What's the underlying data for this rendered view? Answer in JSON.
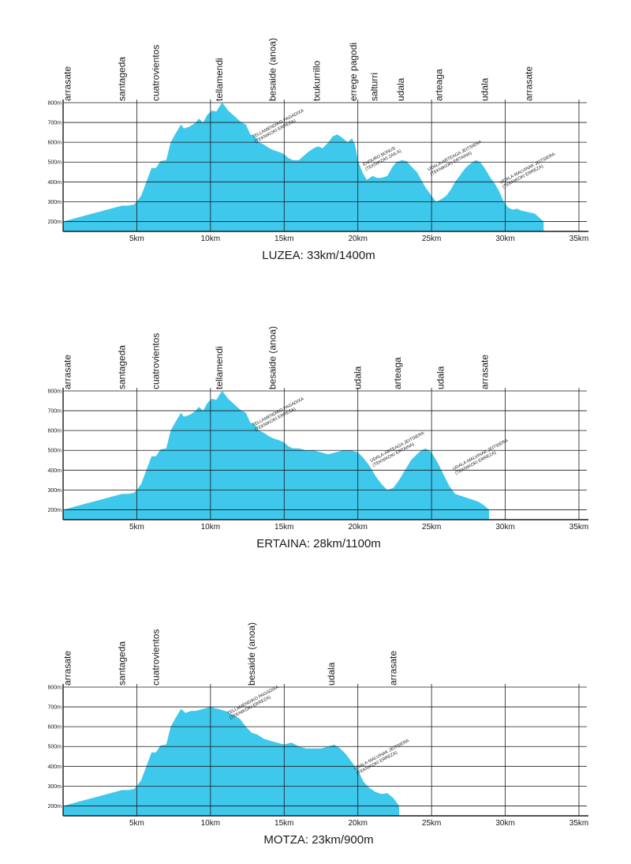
{
  "chart_data": [
    {
      "type": "area",
      "title": "LUZEA: 33km/1400m",
      "xlim": [
        0,
        35
      ],
      "ylim": [
        150,
        800
      ],
      "x_ticks": [
        "5km",
        "10km",
        "15km",
        "20km",
        "25km",
        "30km",
        "35km"
      ],
      "y_ticks": [
        "200m",
        "300m",
        "400m",
        "500m",
        "600m",
        "700m",
        "800m"
      ],
      "places": [
        {
          "name": "arrasate",
          "km": 0.3
        },
        {
          "name": "santageda",
          "km": 4.0
        },
        {
          "name": "cuatrovientos",
          "km": 6.3
        },
        {
          "name": "tellamendi",
          "km": 10.6
        },
        {
          "name": "besaide (anoa)",
          "km": 14.2
        },
        {
          "name": "txukurrillo",
          "km": 17.2
        },
        {
          "name": "errege pagodi",
          "km": 19.7
        },
        {
          "name": "salturri",
          "km": 21.1
        },
        {
          "name": "udala",
          "km": 22.9
        },
        {
          "name": "arteaga",
          "km": 25.5
        },
        {
          "name": "udala",
          "km": 28.6
        },
        {
          "name": "arrasate",
          "km": 31.6
        }
      ],
      "annotations": [
        {
          "lines": [
            "TELLAMENDIKO PAGADIXA",
            "(TEKNIKOKI ERREZA)"
          ],
          "km": 12.9,
          "elev": 620
        },
        {
          "lines": [
            "ENDURO BONUS",
            "(TEKNIKOKI ZAILA)"
          ],
          "km": 20.4,
          "elev": 480
        },
        {
          "lines": [
            "UDALA-ARTEAGA JEITSIERA",
            "(TEKNIKOKI ERTAINA)"
          ],
          "km": 24.8,
          "elev": 455
        },
        {
          "lines": [
            "UDALA-MALVINAK JEITSIERA",
            "(TEKNIKOKI ERREZA)"
          ],
          "km": 29.7,
          "elev": 390
        }
      ],
      "series": [
        {
          "x": [
            0.0,
            1.0,
            2.0,
            3.0,
            3.5,
            4.0,
            4.4,
            4.8,
            5.0,
            5.3,
            5.6,
            6.0,
            6.3,
            6.6,
            7.0,
            7.3,
            7.6,
            8.0,
            8.2,
            8.6,
            9.0,
            9.2,
            9.5,
            9.8,
            10.1,
            10.4,
            10.6,
            10.8,
            11.0,
            11.2,
            11.5,
            11.8,
            12.1,
            12.4,
            12.7,
            13.0,
            13.3,
            13.6,
            14.0,
            14.3,
            14.7,
            15.0,
            15.3,
            15.6,
            16.0,
            16.3,
            16.6,
            17.0,
            17.3,
            17.6,
            18.0,
            18.3,
            18.6,
            19.0,
            19.3,
            19.6,
            19.8,
            20.0,
            20.3,
            20.6,
            21.0,
            21.3,
            21.6,
            22.0,
            22.3,
            22.6,
            23.0,
            23.3,
            23.6,
            24.0,
            24.3,
            24.6,
            25.0,
            25.3,
            25.6,
            26.0,
            26.3,
            26.6,
            27.0,
            27.3,
            27.6,
            28.0,
            28.3,
            28.6,
            29.0,
            29.3,
            29.6,
            29.9,
            30.2,
            30.5,
            30.8,
            31.1,
            31.4,
            31.7,
            32.0,
            32.3,
            32.6
          ],
          "y": [
            200,
            220,
            240,
            260,
            270,
            280,
            280,
            285,
            300,
            330,
            390,
            470,
            470,
            505,
            510,
            600,
            640,
            690,
            670,
            680,
            700,
            720,
            700,
            740,
            760,
            755,
            780,
            800,
            780,
            760,
            740,
            720,
            700,
            690,
            640,
            630,
            600,
            590,
            570,
            560,
            550,
            540,
            520,
            510,
            510,
            530,
            550,
            570,
            580,
            570,
            600,
            630,
            640,
            620,
            600,
            620,
            590,
            510,
            450,
            410,
            430,
            420,
            420,
            430,
            470,
            500,
            510,
            505,
            480,
            450,
            410,
            370,
            330,
            300,
            310,
            330,
            360,
            400,
            440,
            470,
            490,
            510,
            500,
            470,
            420,
            390,
            350,
            300,
            270,
            260,
            265,
            255,
            250,
            245,
            240,
            220,
            200
          ]
        }
      ]
    },
    {
      "type": "area",
      "title": "ERTAINA: 28km/1100m",
      "xlim": [
        0,
        35
      ],
      "ylim": [
        150,
        800
      ],
      "x_ticks": [
        "5km",
        "10km",
        "15km",
        "20km",
        "25km",
        "30km",
        "35km"
      ],
      "y_ticks": [
        "200m",
        "300m",
        "400m",
        "500m",
        "600m",
        "700m",
        "800m"
      ],
      "places": [
        {
          "name": "arrasate",
          "km": 0.3
        },
        {
          "name": "santageda",
          "km": 4.0
        },
        {
          "name": "cuatrovientos",
          "km": 6.3
        },
        {
          "name": "tellamendi",
          "km": 10.6
        },
        {
          "name": "besaide (anoa)",
          "km": 14.2
        },
        {
          "name": "udala",
          "km": 20.0
        },
        {
          "name": "arteaga",
          "km": 22.7
        },
        {
          "name": "udala",
          "km": 25.6
        },
        {
          "name": "arrasate",
          "km": 28.6
        }
      ],
      "annotations": [
        {
          "lines": [
            "TELLAMENDIKO PAGADIXA",
            "(TEKNIKOKI ERREZA)"
          ],
          "km": 12.9,
          "elev": 620
        },
        {
          "lines": [
            "UDALA-ARTEAGA JEITSIERA",
            "(TEKNIKOKI ERTAINA)"
          ],
          "km": 20.9,
          "elev": 440
        },
        {
          "lines": [
            "UDALA-MALVINAK JEITSIERA",
            "(TEKNIKOKI ERREZA)"
          ],
          "km": 26.5,
          "elev": 400
        }
      ],
      "series": [
        {
          "x": [
            0.0,
            1.0,
            2.0,
            3.0,
            3.5,
            4.0,
            4.4,
            4.8,
            5.0,
            5.3,
            5.6,
            6.0,
            6.3,
            6.6,
            7.0,
            7.3,
            7.6,
            8.0,
            8.2,
            8.6,
            9.0,
            9.2,
            9.5,
            9.8,
            10.1,
            10.4,
            10.6,
            10.8,
            11.0,
            11.2,
            11.5,
            11.8,
            12.1,
            12.4,
            12.7,
            13.0,
            13.3,
            13.6,
            14.0,
            14.3,
            14.7,
            15.0,
            15.3,
            15.6,
            16.0,
            16.5,
            17.0,
            17.5,
            18.0,
            18.5,
            19.0,
            19.5,
            20.0,
            20.4,
            20.8,
            21.2,
            21.6,
            22.0,
            22.4,
            22.8,
            23.2,
            23.6,
            24.0,
            24.3,
            24.6,
            25.0,
            25.4,
            25.8,
            26.2,
            26.6,
            27.0,
            27.4,
            27.8,
            28.2,
            28.6,
            28.9
          ],
          "y": [
            200,
            220,
            240,
            260,
            270,
            280,
            280,
            285,
            300,
            330,
            390,
            470,
            470,
            505,
            510,
            600,
            640,
            690,
            670,
            680,
            700,
            720,
            700,
            740,
            760,
            755,
            780,
            800,
            780,
            760,
            740,
            720,
            700,
            690,
            640,
            630,
            600,
            590,
            570,
            560,
            550,
            540,
            520,
            510,
            510,
            500,
            500,
            490,
            480,
            490,
            500,
            500,
            490,
            460,
            420,
            370,
            330,
            300,
            310,
            350,
            400,
            450,
            480,
            500,
            510,
            490,
            440,
            380,
            320,
            280,
            270,
            260,
            250,
            240,
            220,
            200
          ]
        }
      ]
    },
    {
      "type": "area",
      "title": "MOTZA: 23km/900m",
      "xlim": [
        0,
        35
      ],
      "ylim": [
        150,
        800
      ],
      "x_ticks": [
        "5km",
        "10km",
        "15km",
        "20km",
        "25km",
        "30km",
        "35km"
      ],
      "y_ticks": [
        "200m",
        "300m",
        "400m",
        "500m",
        "600m",
        "700m",
        "800m"
      ],
      "places": [
        {
          "name": "arrasate",
          "km": 0.3
        },
        {
          "name": "santageda",
          "km": 4.0
        },
        {
          "name": "cuatrovientos",
          "km": 6.3
        },
        {
          "name": "besaide (anoa)",
          "km": 12.8
        },
        {
          "name": "udala",
          "km": 18.2
        },
        {
          "name": "arrasate",
          "km": 22.4
        }
      ],
      "annotations": [
        {
          "lines": [
            "TELLAMENDIKO PAGADIXA",
            "(TEKNIKOKI ERREZA)"
          ],
          "km": 11.2,
          "elev": 660
        },
        {
          "lines": [
            "UDALA-MALVINAK JEITSIERA",
            "(TEKNIKOKI ERREZA)"
          ],
          "km": 19.8,
          "elev": 380
        }
      ],
      "series": [
        {
          "x": [
            0.0,
            1.0,
            2.0,
            3.0,
            3.5,
            4.0,
            4.4,
            4.8,
            5.0,
            5.3,
            5.6,
            6.0,
            6.3,
            6.6,
            7.0,
            7.3,
            7.6,
            8.0,
            8.3,
            8.7,
            9.0,
            9.5,
            10.0,
            10.5,
            11.0,
            11.5,
            12.0,
            12.4,
            12.8,
            13.2,
            13.6,
            14.0,
            14.5,
            15.0,
            15.5,
            16.0,
            16.5,
            17.0,
            17.5,
            18.0,
            18.4,
            18.8,
            19.2,
            19.6,
            20.0,
            20.4,
            20.8,
            21.2,
            21.6,
            22.0,
            22.4,
            22.8
          ],
          "y": [
            200,
            220,
            240,
            260,
            270,
            280,
            280,
            285,
            300,
            330,
            390,
            470,
            470,
            505,
            510,
            600,
            640,
            690,
            670,
            680,
            680,
            690,
            700,
            690,
            680,
            660,
            640,
            600,
            570,
            560,
            540,
            530,
            520,
            510,
            520,
            500,
            490,
            490,
            490,
            500,
            510,
            490,
            460,
            420,
            380,
            320,
            290,
            270,
            260,
            265,
            240,
            200
          ]
        }
      ]
    }
  ]
}
